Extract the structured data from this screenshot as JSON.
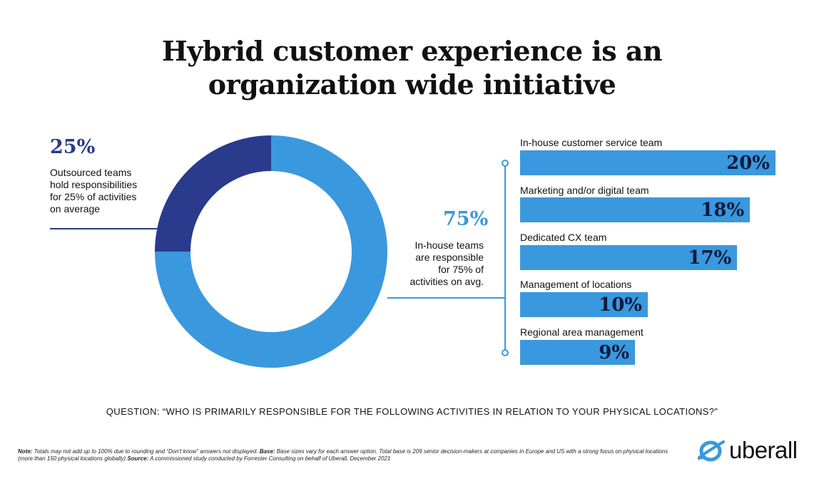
{
  "title": {
    "line1": "Hybrid customer experience is an",
    "line2": "organization wide initiative"
  },
  "colors": {
    "dark_blue": "#2a3a8c",
    "light_blue": "#3a98de",
    "value_text": "#0e1b3d"
  },
  "chart_data": [
    {
      "type": "pie",
      "subtype": "donut",
      "categories": [
        "Outsourced teams",
        "In-house teams"
      ],
      "values": [
        25,
        75
      ],
      "labels": [
        "25%",
        "75%"
      ],
      "annotations": {
        "outsourced": {
          "pct": "25%",
          "lines": [
            "Outsourced teams",
            "hold responsibilities",
            "for 25% of activities",
            "on average"
          ]
        },
        "inhouse": {
          "pct": "75%",
          "lines": [
            "In-house teams",
            "are responsible",
            "for 75% of",
            "activities on avg."
          ]
        }
      }
    },
    {
      "type": "bar",
      "orientation": "horizontal",
      "categories": [
        "In-house customer service team",
        "Marketing and/or digital team",
        "Dedicated CX team",
        "Management of locations",
        "Regional area management"
      ],
      "values": [
        20,
        18,
        17,
        10,
        9
      ],
      "value_labels": [
        "20%",
        "18%",
        "17%",
        "10%",
        "9%"
      ],
      "xlim": [
        0,
        20
      ]
    }
  ],
  "question": "QUESTION: “WHO IS PRIMARILY RESPONSIBLE FOR THE FOLLOWING ACTIVITIES IN RELATION TO YOUR PHYSICAL LOCATIONS?”",
  "footnote": {
    "note_label": "Note:",
    "note_text": " Totals may not add up to 100% due to rounding and “Don't know” answers not displayed. ",
    "base_label": "Base:",
    "base_text": " Base sizes vary for each answer option. Total base is 209 senior decision-makers at companies in Europe and US with a strong focus on physical locations (more than 150 physical locations globally) ",
    "source_label": "Source:",
    "source_text": " A commissioned study conducted by Forrester Consulting on behalf of Uberall, December 2021"
  },
  "logo": {
    "icon": "uberall-logo-icon",
    "text": "uberall"
  }
}
